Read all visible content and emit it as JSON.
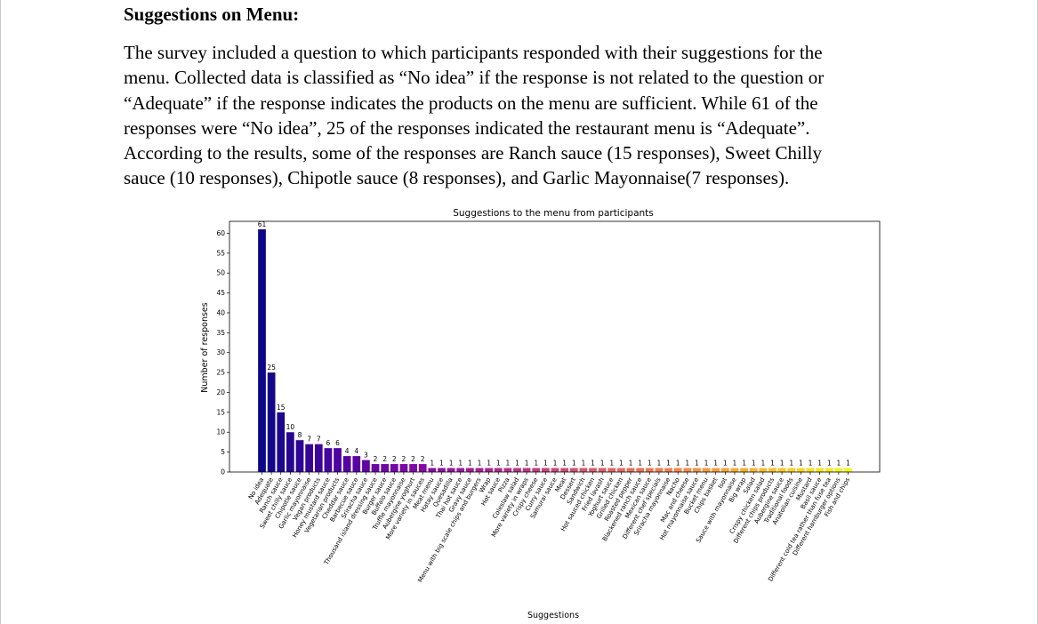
{
  "section": {
    "heading": "Suggestions on Menu:",
    "paragraph_lines": [
      " The survey included a question to which participants responded with their suggestions for the",
      "menu. Collected data is classified as “No idea” if the response is not related to the question or",
      "“Adequate” if the response indicates the products on the menu are sufficient. While 61 of the",
      "responses were “No idea”, 25 of the responses indicated the restaurant menu is “Adequate”.",
      "According to the results, some of the responses are Ranch sauce (15 responses), Sweet Chilly",
      "sauce (10 responses), Chipotle sauce (8 responses), and Garlic Mayonnaise(7 responses)."
    ]
  },
  "chart_data": {
    "type": "bar",
    "title": "Suggestions to the menu from participants",
    "xlabel": "Suggestions",
    "ylabel": "Number of responses",
    "ylim": [
      0,
      63
    ],
    "yticks": [
      0,
      5,
      10,
      15,
      20,
      25,
      30,
      35,
      40,
      45,
      50,
      55,
      60
    ],
    "grid": false,
    "colormap": "plasma",
    "categories": [
      "No idea",
      "Adequate",
      "Ranch sauce",
      "Sweet chilly sauce",
      "Chipotle sauce",
      "Garlic mayonnaise",
      "Vegan products",
      "Honey mustard sauce",
      "Vegetarian products",
      "Cheddar sauce",
      "Barbecue sauce",
      "Sriracha sauce",
      "Thousand island dressing sauce",
      "Burger sauce",
      "Buffalo sauce",
      "Truffle mayonnaise",
      "Aubergine yoghurt",
      "More variety in sauces",
      "Meat menu",
      "Hatay sauce",
      "Quesadilla",
      "Thai hot sauce",
      "Gravy sauce",
      "Menu with big scale chips and burgers",
      "Wrap",
      "Hot sauce",
      "Pizza",
      "Coleslaw salad",
      "More variety in wraps",
      "Crispy cheese",
      "Curry sauce",
      "Samurai sauce",
      "Meat",
      "Dessert",
      "Sandwich",
      "Hot sauced chicken",
      "Fried lavash",
      "Yoghurt sauce",
      "Grilled chicken",
      "Roasted pepper",
      "Blackened ranch sauce",
      "Mexican sauce",
      "Different chef specials",
      "Sriracha mayonnaise",
      "Nacho",
      "Mac and cheese",
      "Hot mayonnaise sauce",
      "Bucket menu",
      "Chips basket",
      "Isot",
      "Sauce with mayonnaise",
      "Big wrap",
      "Salad",
      "Crispy chicken salad",
      "Different chips products",
      "Aubergine sauce",
      "Traditional foods",
      "Anatolian cuisine",
      "Mustard",
      "Basil sauce",
      "Different cold tea rather than fuse tea",
      "Different hamburger options",
      "Fish and chips"
    ],
    "values": [
      61,
      25,
      15,
      10,
      8,
      7,
      7,
      6,
      6,
      4,
      4,
      3,
      2,
      2,
      2,
      2,
      2,
      2,
      1,
      1,
      1,
      1,
      1,
      1,
      1,
      1,
      1,
      1,
      1,
      1,
      1,
      1,
      1,
      1,
      1,
      1,
      1,
      1,
      1,
      1,
      1,
      1,
      1,
      1,
      1,
      1,
      1,
      1,
      1,
      1,
      1,
      1,
      1,
      1,
      1,
      1,
      1,
      1,
      1,
      1,
      1,
      1,
      1
    ]
  }
}
